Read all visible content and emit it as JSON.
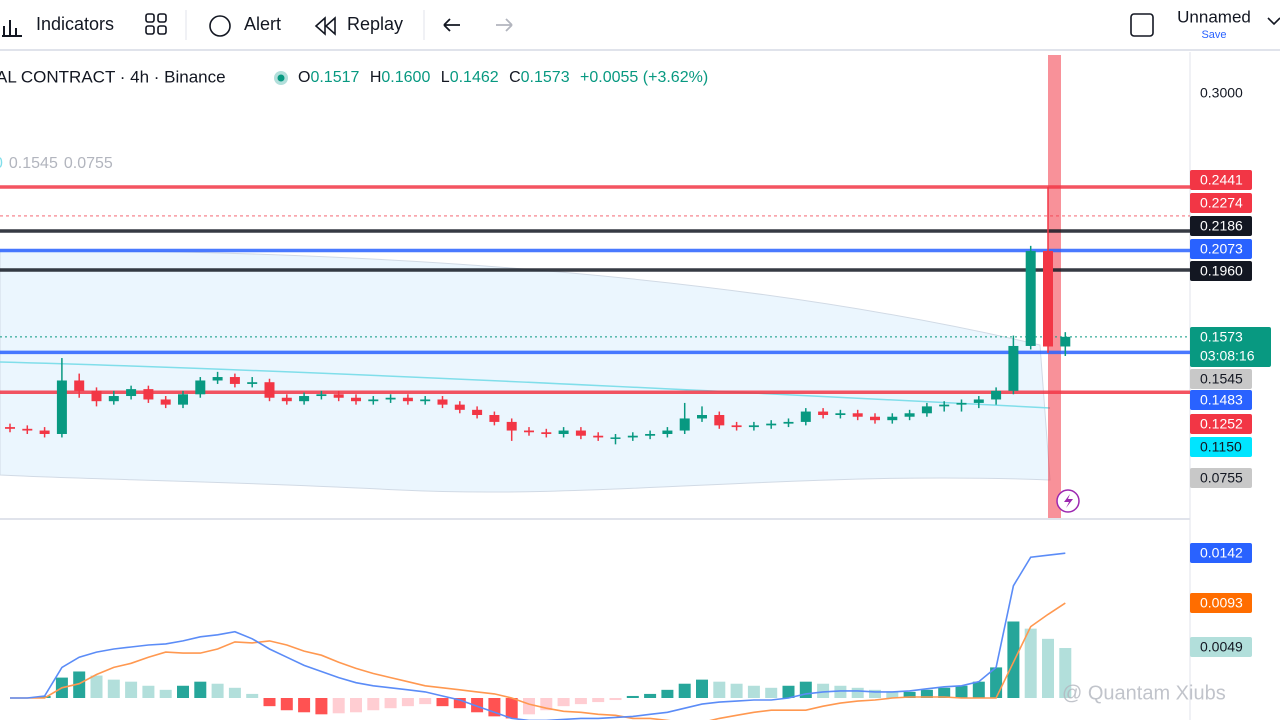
{
  "toolbar": {
    "indicators": "Indicators",
    "alert": "Alert",
    "replay": "Replay",
    "layout": "Unnamed",
    "save": "Save"
  },
  "legend": {
    "title": "AL CONTRACT · 4h · Binance",
    "o_key": "O",
    "o": "0.1517",
    "h_key": "H",
    "h": "0.1600",
    "l_key": "L",
    "l": "0.1462",
    "c_key": "C",
    "c": "0.1573",
    "change": "+0.0055 (+3.62%)",
    "bb_a": "0.1545",
    "bb_b": "0.0755"
  },
  "chart": {
    "candles": [
      [
        0.105,
        0.107,
        0.102,
        0.104
      ],
      [
        0.104,
        0.106,
        0.101,
        0.103
      ],
      [
        0.103,
        0.105,
        0.099,
        0.101
      ],
      [
        0.101,
        0.145,
        0.099,
        0.132
      ],
      [
        0.132,
        0.136,
        0.122,
        0.126
      ],
      [
        0.126,
        0.128,
        0.117,
        0.12
      ],
      [
        0.12,
        0.126,
        0.118,
        0.123
      ],
      [
        0.123,
        0.129,
        0.121,
        0.127
      ],
      [
        0.127,
        0.129,
        0.119,
        0.121
      ],
      [
        0.121,
        0.123,
        0.116,
        0.118
      ],
      [
        0.118,
        0.126,
        0.116,
        0.124
      ],
      [
        0.124,
        0.134,
        0.122,
        0.132
      ],
      [
        0.132,
        0.137,
        0.13,
        0.134
      ],
      [
        0.134,
        0.136,
        0.128,
        0.13
      ],
      [
        0.13,
        0.134,
        0.128,
        0.131
      ],
      [
        0.131,
        0.133,
        0.12,
        0.122
      ],
      [
        0.122,
        0.124,
        0.118,
        0.12
      ],
      [
        0.12,
        0.125,
        0.118,
        0.123
      ],
      [
        0.123,
        0.126,
        0.121,
        0.124
      ],
      [
        0.124,
        0.126,
        0.12,
        0.122
      ],
      [
        0.122,
        0.124,
        0.118,
        0.12
      ],
      [
        0.12,
        0.123,
        0.118,
        0.121
      ],
      [
        0.121,
        0.124,
        0.119,
        0.122
      ],
      [
        0.122,
        0.124,
        0.118,
        0.12
      ],
      [
        0.12,
        0.123,
        0.118,
        0.121
      ],
      [
        0.121,
        0.123,
        0.116,
        0.118
      ],
      [
        0.118,
        0.12,
        0.113,
        0.115
      ],
      [
        0.115,
        0.117,
        0.11,
        0.112
      ],
      [
        0.112,
        0.114,
        0.106,
        0.108
      ],
      [
        0.108,
        0.11,
        0.097,
        0.103
      ],
      [
        0.103,
        0.105,
        0.1,
        0.102
      ],
      [
        0.102,
        0.104,
        0.099,
        0.101
      ],
      [
        0.101,
        0.105,
        0.099,
        0.103
      ],
      [
        0.103,
        0.105,
        0.098,
        0.1
      ],
      [
        0.1,
        0.102,
        0.097,
        0.099
      ],
      [
        0.099,
        0.101,
        0.095,
        0.099
      ],
      [
        0.099,
        0.102,
        0.097,
        0.1
      ],
      [
        0.1,
        0.103,
        0.098,
        0.101
      ],
      [
        0.101,
        0.105,
        0.099,
        0.103
      ],
      [
        0.103,
        0.119,
        0.101,
        0.11
      ],
      [
        0.11,
        0.117,
        0.108,
        0.112
      ],
      [
        0.112,
        0.114,
        0.104,
        0.106
      ],
      [
        0.106,
        0.108,
        0.103,
        0.105
      ],
      [
        0.105,
        0.108,
        0.103,
        0.106
      ],
      [
        0.106,
        0.109,
        0.104,
        0.107
      ],
      [
        0.107,
        0.11,
        0.105,
        0.108
      ],
      [
        0.108,
        0.116,
        0.106,
        0.114
      ],
      [
        0.114,
        0.116,
        0.11,
        0.112
      ],
      [
        0.112,
        0.115,
        0.11,
        0.113
      ],
      [
        0.113,
        0.115,
        0.109,
        0.111
      ],
      [
        0.111,
        0.113,
        0.107,
        0.109
      ],
      [
        0.109,
        0.113,
        0.107,
        0.111
      ],
      [
        0.111,
        0.115,
        0.109,
        0.113
      ],
      [
        0.113,
        0.119,
        0.111,
        0.117
      ],
      [
        0.117,
        0.12,
        0.114,
        0.118
      ],
      [
        0.118,
        0.121,
        0.114,
        0.119
      ],
      [
        0.119,
        0.123,
        0.116,
        0.121
      ],
      [
        0.121,
        0.128,
        0.118,
        0.126
      ],
      [
        0.126,
        0.158,
        0.124,
        0.152
      ],
      [
        0.152,
        0.21,
        0.15,
        0.207
      ],
      [
        0.207,
        0.2441,
        0.148,
        0.1517
      ],
      [
        0.1517,
        0.16,
        0.1462,
        0.1573
      ]
    ],
    "hist": [
      0,
      0,
      0.0002,
      0.002,
      0.0026,
      0.0022,
      0.0018,
      0.0016,
      0.0012,
      0.0008,
      0.0012,
      0.0016,
      0.0014,
      0.001,
      0.0004,
      -0.0008,
      -0.0012,
      -0.0014,
      -0.0016,
      -0.0015,
      -0.0014,
      -0.0012,
      -0.001,
      -0.0008,
      -0.0006,
      -0.0008,
      -0.001,
      -0.0014,
      -0.0018,
      -0.002,
      -0.0016,
      -0.0012,
      -0.0008,
      -0.0006,
      -0.0004,
      -0.0002,
      0.0002,
      0.0004,
      0.0008,
      0.0014,
      0.0018,
      0.0016,
      0.0014,
      0.0012,
      0.001,
      0.0012,
      0.0016,
      0.0014,
      0.0012,
      0.001,
      0.0008,
      0.0006,
      0.0006,
      0.0008,
      0.001,
      0.0012,
      0.0016,
      0.003,
      0.0075,
      0.0068,
      0.0058,
      0.0049
    ],
    "macd": [
      0,
      0,
      0.0002,
      0.003,
      0.004,
      0.0045,
      0.0048,
      0.005,
      0.0052,
      0.0053,
      0.0056,
      0.006,
      0.0062,
      0.0065,
      0.0058,
      0.0048,
      0.004,
      0.0032,
      0.0026,
      0.002,
      0.0015,
      0.0012,
      0.001,
      0.0008,
      0.0006,
      0.0002,
      -0.0002,
      -0.0008,
      -0.0014,
      -0.002,
      -0.0022,
      -0.0022,
      -0.0021,
      -0.002,
      -0.002,
      -0.0019,
      -0.0018,
      -0.0016,
      -0.0014,
      -0.001,
      -0.0006,
      -0.0004,
      -0.0003,
      -0.0002,
      -0.0002,
      0,
      0.0004,
      0.0006,
      0.0007,
      0.0007,
      0.0006,
      0.0006,
      0.0007,
      0.0009,
      0.0011,
      0.0012,
      0.0016,
      0.003,
      0.011,
      0.0138,
      0.014,
      0.0142
    ],
    "signal": [
      0,
      0,
      0,
      0.001,
      0.0014,
      0.0023,
      0.003,
      0.0034,
      0.004,
      0.0045,
      0.0044,
      0.0044,
      0.0048,
      0.0055,
      0.0054,
      0.0056,
      0.0052,
      0.0046,
      0.0042,
      0.0035,
      0.0029,
      0.0024,
      0.002,
      0.0016,
      0.0012,
      0.001,
      0.0008,
      0.0006,
      0.0004,
      0,
      -0.0006,
      -0.001,
      -0.0013,
      -0.0014,
      -0.0016,
      -0.0017,
      -0.002,
      -0.002,
      -0.0022,
      -0.0024,
      -0.0024,
      -0.002,
      -0.0017,
      -0.0014,
      -0.0012,
      -0.0012,
      -0.0012,
      -0.0008,
      -0.0005,
      -0.0003,
      -0.0002,
      0,
      0.0001,
      0.0001,
      0.0001,
      0,
      0,
      0,
      0.0035,
      0.007,
      0.0082,
      0.0093
    ],
    "levels": [
      {
        "price": {
          "value": 0.3,
          "label": "0.3000"
        },
        "color": "none",
        "line": "none"
      },
      {
        "price": 0.2441,
        "color": "#f23645",
        "line": "solid"
      },
      {
        "price": 0.2274,
        "color": "#f23645",
        "line": "dotted"
      },
      {
        "price": 0.2186,
        "color": "#131722",
        "line": "solid"
      },
      {
        "price": 0.2073,
        "color": "#2962ff",
        "line": "solid"
      },
      {
        "price": {
          "value": 0.196,
          "label": "0.1960"
        },
        "color": "#131722",
        "line": "solid"
      },
      {
        "price": 0.1545,
        "color": "#c8c8c8",
        "line": "none"
      },
      {
        "price": 0.1483,
        "color": "#2962ff",
        "line": "solid"
      },
      {
        "price": 0.1252,
        "color": "#f23645",
        "line": "solid"
      },
      {
        "price": {
          "value": 0.115,
          "label": "0.1150"
        },
        "color": "#00e5ff",
        "line": "none"
      },
      {
        "price": 0.0755,
        "color": "#c8c8c8",
        "line": "none"
      }
    ],
    "last_price": 0.1573,
    "countdown": "03:08:16",
    "macd_labels": [
      {
        "price": 0.0142,
        "color": "#2962ff"
      },
      {
        "price": 0.0093,
        "color": "#ff6d00"
      },
      {
        "price": 0.0049,
        "color": "#b2dfdb"
      }
    ]
  },
  "watermark": "@ Quantam Xiubs"
}
